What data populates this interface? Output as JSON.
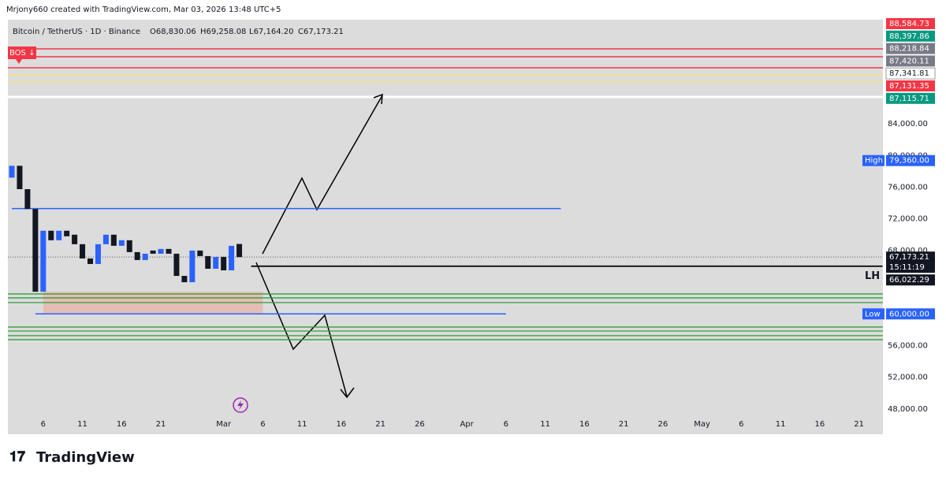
{
  "header": {
    "credit": "Mrjony660 created with TradingView.com, Mar 03, 2026 13:48 UTC+5",
    "brand": "TradingView"
  },
  "chart_data": {
    "type": "candlestick",
    "title": "Bitcoin / TetherUS · 1D · Binance",
    "ohlc": [
      {
        "value": 68830.06,
        "label": "O68,830.06"
      },
      {
        "value": 69258.08,
        "label": "H69,258.08"
      },
      {
        "value": 67164.2,
        "label": "L67,164.20"
      },
      {
        "value": 67173.21,
        "label": "C67,173.21"
      }
    ],
    "x": [
      0,
      1,
      2,
      3,
      4,
      5,
      6,
      7,
      8,
      9,
      10,
      11,
      12,
      13,
      14,
      15,
      16,
      17,
      18,
      19,
      20,
      21,
      22,
      23,
      24,
      25,
      26,
      27,
      28,
      29
    ],
    "open": [
      77200,
      78700,
      75750,
      73250,
      62800,
      70500,
      69300,
      70500,
      70000,
      68800,
      67000,
      66300,
      68800,
      70000,
      68600,
      69300,
      67800,
      66800,
      68000,
      67600,
      68200,
      67600,
      64800,
      64000,
      68000,
      67300,
      65700,
      67200,
      65500,
      68830.06
    ],
    "high": {
      "name": "High",
      "value": 79360,
      "label": "79,360.00"
    },
    "low": {
      "name": "Low",
      "value": 60000,
      "label": "60,000.00"
    },
    "close": [
      78700,
      75750,
      73250,
      62800,
      70500,
      69300,
      70500,
      69800,
      68800,
      67000,
      66300,
      68800,
      70000,
      68600,
      69300,
      67800,
      66800,
      67600,
      67600,
      68200,
      67600,
      64800,
      64000,
      68000,
      67300,
      65700,
      67200,
      65500,
      68600,
      67173.21
    ],
    "up_color": "#2962ff",
    "down_color": "#131722",
    "xlim": [
      -1,
      111
    ],
    "xticks": [
      {
        "value": 4,
        "label": "6"
      },
      {
        "value": 9,
        "label": "11"
      },
      {
        "value": 14,
        "label": "16"
      },
      {
        "value": 19,
        "label": "21"
      },
      {
        "value": 27,
        "label": "Mar"
      },
      {
        "value": 32,
        "label": "6"
      },
      {
        "value": 37,
        "label": "11"
      },
      {
        "value": 42,
        "label": "16"
      },
      {
        "value": 47,
        "label": "21"
      },
      {
        "value": 52,
        "label": "26"
      },
      {
        "value": 58,
        "label": "Apr"
      },
      {
        "value": 63,
        "label": "6"
      },
      {
        "value": 68,
        "label": "11"
      },
      {
        "value": 73,
        "label": "16"
      },
      {
        "value": 78,
        "label": "21"
      },
      {
        "value": 83,
        "label": "26"
      },
      {
        "value": 88,
        "label": "May"
      },
      {
        "value": 93,
        "label": "6"
      },
      {
        "value": 98,
        "label": "11"
      },
      {
        "value": 103,
        "label": "16"
      },
      {
        "value": 108,
        "label": "21"
      }
    ],
    "ylim": [
      44900,
      85700
    ],
    "yticks": [
      {
        "value": 84000,
        "label": "84,000.00"
      },
      {
        "value": 80000,
        "label": "80,000.00"
      },
      {
        "value": 76000,
        "label": "76,000.00"
      },
      {
        "value": 72000,
        "label": "72,000.00"
      },
      {
        "value": 68000,
        "label": "68,000.00"
      },
      {
        "value": 56000,
        "label": "56,000.00"
      },
      {
        "value": 52000,
        "label": "52,000.00"
      },
      {
        "value": 48000,
        "label": "48,000.00"
      }
    ],
    "top_tags": [
      {
        "value": 88584.73,
        "label": "88,584.73",
        "color": "#f23645"
      },
      {
        "value": 88397.86,
        "label": "88,397.86",
        "color": "#089981"
      },
      {
        "value": 88218.84,
        "label": "88,218.84",
        "color": "#787b86"
      },
      {
        "value": 87420.11,
        "label": "87,420.11",
        "color": "#787b86"
      },
      {
        "value": 87341.81,
        "label": "87,341.81",
        "color": "#ffffff"
      },
      {
        "value": 87131.35,
        "label": "87,131.35",
        "color": "#f23645"
      },
      {
        "value": 87115.71,
        "label": "87,115.71",
        "color": "#089981"
      }
    ],
    "bos": "BOS ↓",
    "last": {
      "value": 67173.21,
      "label": "67,173.21",
      "countdown": "15:11:19"
    },
    "lh": {
      "name": "LH",
      "value": 66022.29,
      "label": "66,022.29",
      "x": [
        30.5,
        111
      ]
    },
    "lines": [
      {
        "value": 73300,
        "x": [
          0,
          70
        ],
        "color": "#2962ff"
      },
      {
        "value": 60000,
        "x": [
          3,
          63
        ],
        "color": "#2962ff"
      }
    ],
    "green_lines": [
      62520,
      62020,
      61430,
      58340,
      57840,
      57250,
      56750
    ],
    "zone": {
      "x": [
        4,
        32
      ],
      "y": [
        60000,
        62800
      ]
    }
  }
}
